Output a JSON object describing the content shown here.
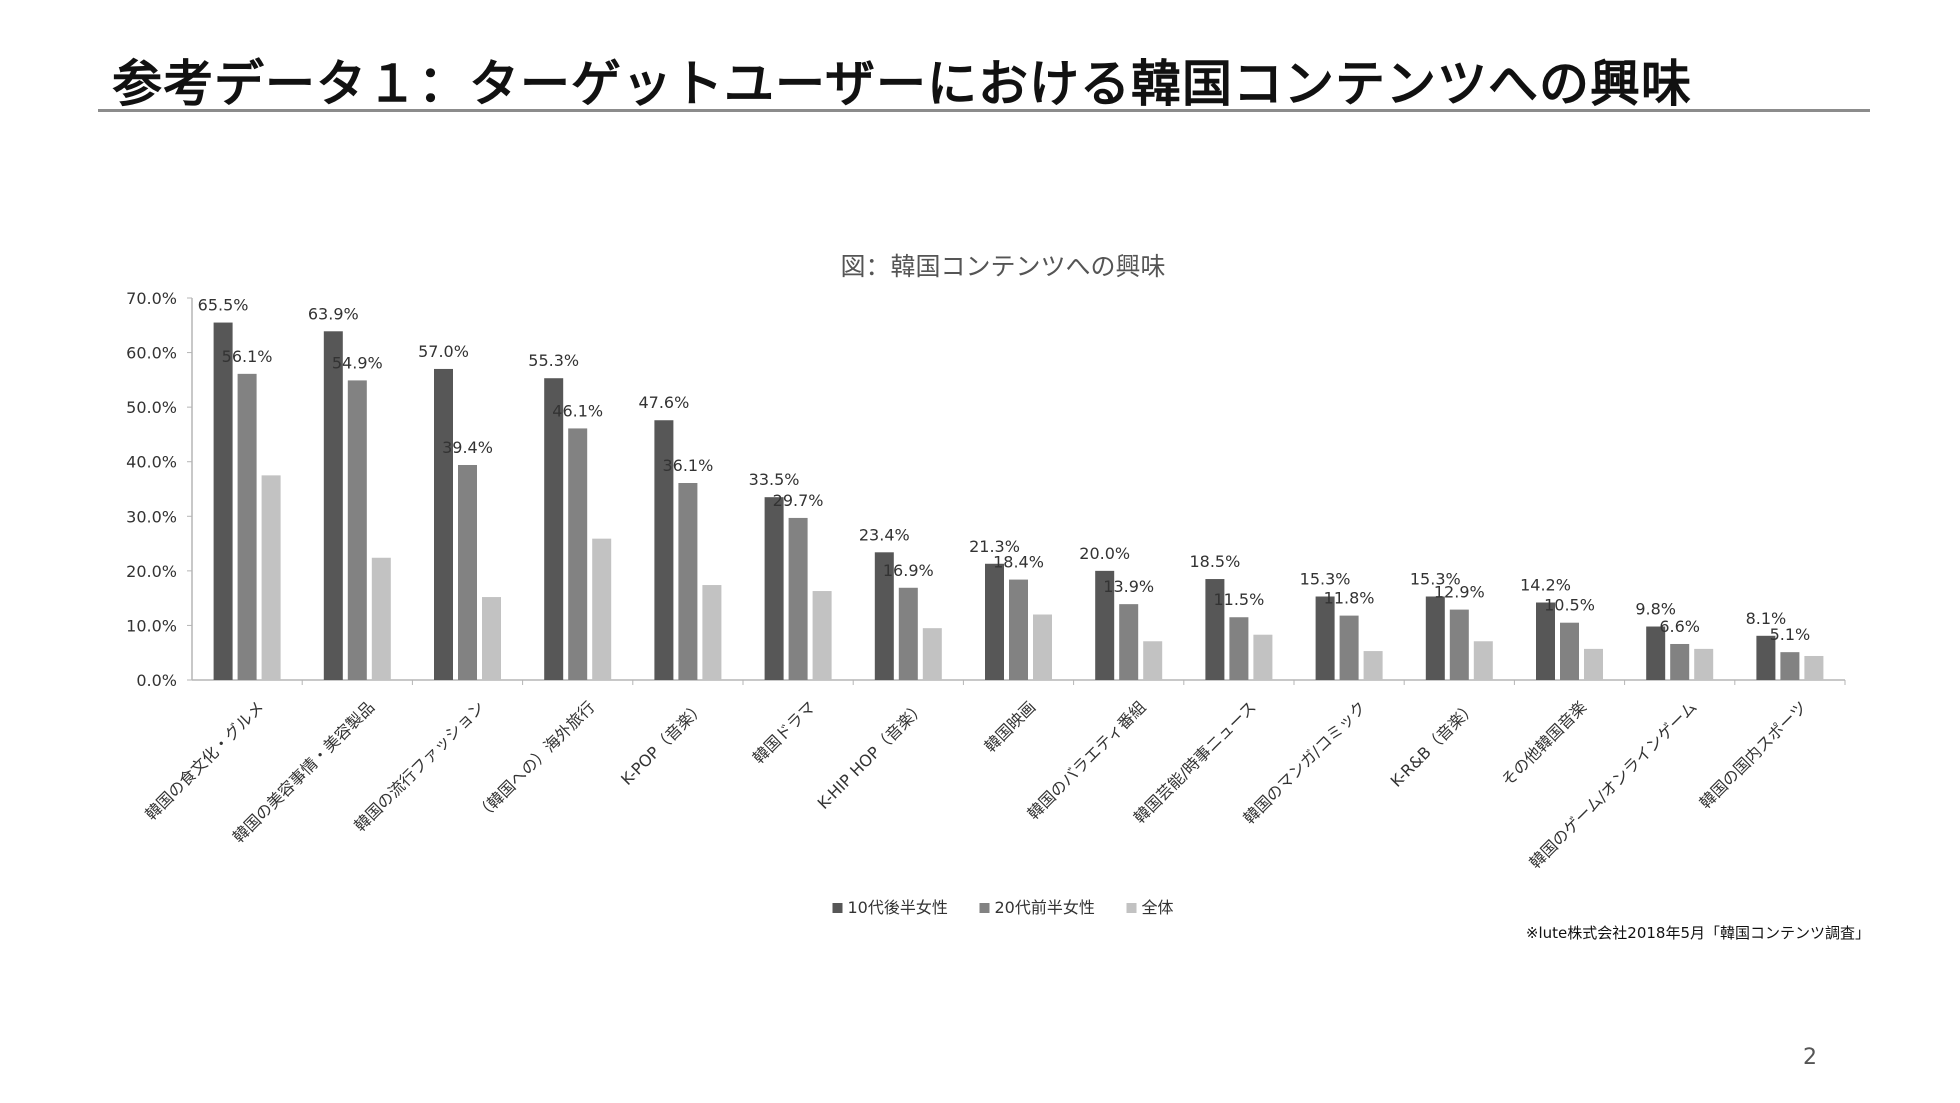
{
  "slide": {
    "title": "参考データ１：ターゲットユーザーにおける韓国コンテンツへの興味",
    "footnote": "※lute株式会社2018年5月「韓国コンテンツ調査」",
    "page_number": "2"
  },
  "colors": {
    "series": [
      "#575757",
      "#828282",
      "#c2c2c2"
    ],
    "axis": "#b5b5b5",
    "label": "#333333"
  },
  "chart_data": {
    "type": "bar",
    "title": "図：韓国コンテンツへの興味",
    "ylim": [
      0,
      70
    ],
    "yticks": [
      0,
      10,
      20,
      30,
      40,
      50,
      60,
      70
    ],
    "ytick_labels": [
      "0.0%",
      "10.0%",
      "20.0%",
      "30.0%",
      "40.0%",
      "50.0%",
      "60.0%",
      "70.0%"
    ],
    "grid": false,
    "legend_position": "bottom",
    "categories": [
      "韓国の食文化・グルメ",
      "韓国の美容事情・美容製品",
      "韓国の流行ファッション",
      "（韓国への）海外旅行",
      "K-POP（音楽）",
      "韓国ドラマ",
      "K-HIP HOP（音楽）",
      "韓国映画",
      "韓国のバラエティ番組",
      "韓国芸能/時事ニュース",
      "韓国のマンガ/コミック",
      "K-R&B（音楽）",
      "その他韓国音楽",
      "韓国のゲーム/オンラインゲーム",
      "韓国の国内スポーツ"
    ],
    "series": [
      {
        "name": "10代後半女性",
        "values": [
          65.5,
          63.9,
          57.0,
          55.3,
          47.6,
          33.5,
          23.4,
          21.3,
          20.0,
          18.5,
          15.3,
          15.3,
          14.2,
          9.8,
          8.1
        ],
        "labels": [
          "65.5%",
          "63.9%",
          "57.0%",
          "55.3%",
          "47.6%",
          "33.5%",
          "23.4%",
          "21.3%",
          "20.0%",
          "18.5%",
          "15.3%",
          "15.3%",
          "14.2%",
          "9.8%",
          "8.1%"
        ]
      },
      {
        "name": "20代前半女性",
        "values": [
          56.1,
          54.9,
          39.4,
          46.1,
          36.1,
          29.7,
          16.9,
          18.4,
          13.9,
          11.5,
          11.8,
          12.9,
          10.5,
          6.6,
          5.1
        ],
        "labels": [
          "56.1%",
          "54.9%",
          "39.4%",
          "46.1%",
          "36.1%",
          "29.7%",
          "16.9%",
          "18.4%",
          "13.9%",
          "11.5%",
          "11.8%",
          "12.9%",
          "10.5%",
          "6.6%",
          "5.1%"
        ]
      },
      {
        "name": "全体",
        "values": [
          37.5,
          22.4,
          15.2,
          25.9,
          17.4,
          16.3,
          9.5,
          12.0,
          7.1,
          8.3,
          5.3,
          7.1,
          5.7,
          5.7,
          4.4
        ]
      }
    ]
  }
}
